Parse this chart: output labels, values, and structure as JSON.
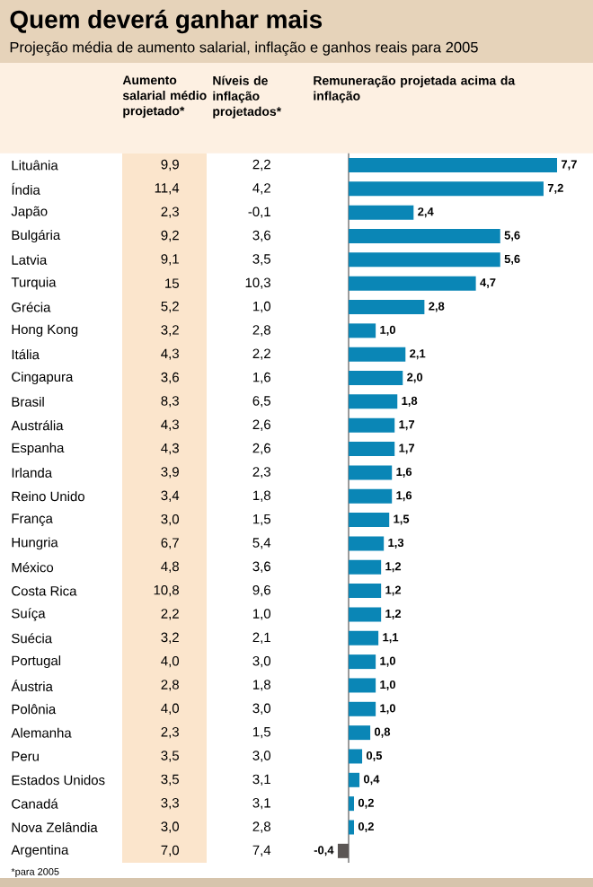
{
  "chart_data": [
    {
      "type": "other",
      "title": "Quem deverá ganhar mais",
      "subtitle": "Projeção média de aumento salarial, inflação e ganhos reais para 2005",
      "annotations": [
        "*para 2005"
      ]
    },
    {
      "type": "other",
      "title": "Aumento salarial médio projetado*",
      "categories": [
        null,
        null,
        null,
        null,
        null,
        null,
        null,
        null,
        null,
        null,
        null,
        null,
        null,
        null,
        null,
        null,
        null,
        null,
        null,
        null,
        null,
        null,
        null,
        null,
        null,
        null,
        null,
        null,
        null,
        null
      ],
      "values": [
        9.9,
        11.4,
        2.3,
        9.2,
        9.1,
        15,
        5.2,
        3.2,
        4.3,
        3.6,
        8.3,
        4.3,
        4.3,
        3.9,
        3.4,
        3.0,
        6.7,
        4.8,
        10.8,
        2.2,
        3.2,
        4.0,
        2.8,
        4.0,
        2.3,
        3.5,
        3.5,
        3.3,
        3.0,
        7.0
      ],
      "value_labels": [
        "9,9",
        "11,4",
        "2,3",
        "9,2",
        "9,1",
        "15",
        "5,2",
        "3,2",
        "4,3",
        "3,6",
        "8,3",
        "4,3",
        "4,3",
        "3,9",
        "3,4",
        "3,0",
        "6,7",
        "4,8",
        "10,8",
        "2,2",
        "3,2",
        "4,0",
        "2,8",
        "4,0",
        "2,3",
        "3,5",
        "3,5",
        "3,3",
        "3,0",
        "7,0"
      ]
    },
    {
      "type": "other",
      "title": "Níveis de inflação projetados*",
      "categories": [
        null,
        null,
        null,
        null,
        null,
        null,
        null,
        null,
        null,
        null,
        null,
        null,
        null,
        null,
        null,
        null,
        null,
        null,
        null,
        null,
        null,
        null,
        null,
        null,
        null,
        null,
        null,
        null,
        null,
        null
      ],
      "values": [
        2.2,
        4.2,
        -0.1,
        3.6,
        3.5,
        10.3,
        1.0,
        2.8,
        2.2,
        1.6,
        6.5,
        2.6,
        2.6,
        2.3,
        1.8,
        1.5,
        5.4,
        3.6,
        9.6,
        1.0,
        2.1,
        3.0,
        1.8,
        3.0,
        1.5,
        3.0,
        3.1,
        3.1,
        2.8,
        7.4
      ],
      "value_labels": [
        "2,2",
        "4,2",
        "-0,1",
        "3,6",
        "3,5",
        "10,3",
        "1,0",
        "2,8",
        "2,2",
        "1,6",
        "6,5",
        "2,6",
        "2,6",
        "2,3",
        "1,8",
        "1,5",
        "5,4",
        "3,6",
        "9,6",
        "1,0",
        "2,1",
        "3,0",
        "1,8",
        "3,0",
        "1,5",
        "3,0",
        "3,1",
        "3,1",
        "2,8",
        "7,4"
      ]
    },
    {
      "type": "bar",
      "orientation": "horizontal",
      "title": "Remuneração projetada acima da inflação",
      "categories": [
        "Lituânia",
        "Índia",
        "Japão",
        "Bulgária",
        "Latvia",
        "Turquia",
        "Grécia",
        "Hong Kong",
        "Itália",
        "Cingapura",
        "Brasil",
        "Austrália",
        "Espanha",
        "Irlanda",
        "Reino Unido",
        "França",
        "Hungria",
        "México",
        "Costa Rica",
        "Suíça",
        "Suécia",
        "Portugal",
        "Áustria",
        "Polônia",
        "Alemanha",
        "Peru",
        "Estados Unidos",
        "Canadá",
        "Nova Zelândia",
        "Argentina"
      ],
      "colors": [
        "#0a86b6",
        "#0a86b6",
        "#0a86b6",
        "#0a86b6",
        "#0a86b6",
        "#0a86b6",
        "#0a86b6",
        "#0a86b6",
        "#0a86b6",
        "#0a86b6",
        "#0a86b6",
        "#0a86b6",
        "#0a86b6",
        "#0a86b6",
        "#0a86b6",
        "#0a86b6",
        "#0a86b6",
        "#0a86b6",
        "#0a86b6",
        "#0a86b6",
        "#0a86b6",
        "#0a86b6",
        "#0a86b6",
        "#0a86b6",
        "#0a86b6",
        "#0a86b6",
        "#0a86b6",
        "#0a86b6",
        "#0a86b6",
        "#5b5655"
      ],
      "values": [
        7.7,
        7.2,
        2.4,
        5.6,
        5.6,
        4.7,
        2.8,
        1.0,
        2.1,
        2.0,
        1.8,
        1.7,
        1.7,
        1.6,
        1.6,
        1.5,
        1.3,
        1.2,
        1.2,
        1.2,
        1.1,
        1.0,
        1.0,
        1.0,
        0.8,
        0.5,
        0.4,
        0.2,
        0.2,
        -0.4
      ],
      "value_labels": [
        "7,7",
        "7,2",
        "2,4",
        "5,6",
        "5,6",
        "4,7",
        "2,8",
        "1,0",
        "2,1",
        "2,0",
        "1,8",
        "1,7",
        "1,7",
        "1,6",
        "1,6",
        "1,5",
        "1,3",
        "1,2",
        "1,2",
        "1,2",
        "1,1",
        "1,0",
        "1,0",
        "1,0",
        "0,8",
        "0,5",
        "0,4",
        "0,2",
        "0,2",
        "-0,4"
      ]
    }
  ]
}
